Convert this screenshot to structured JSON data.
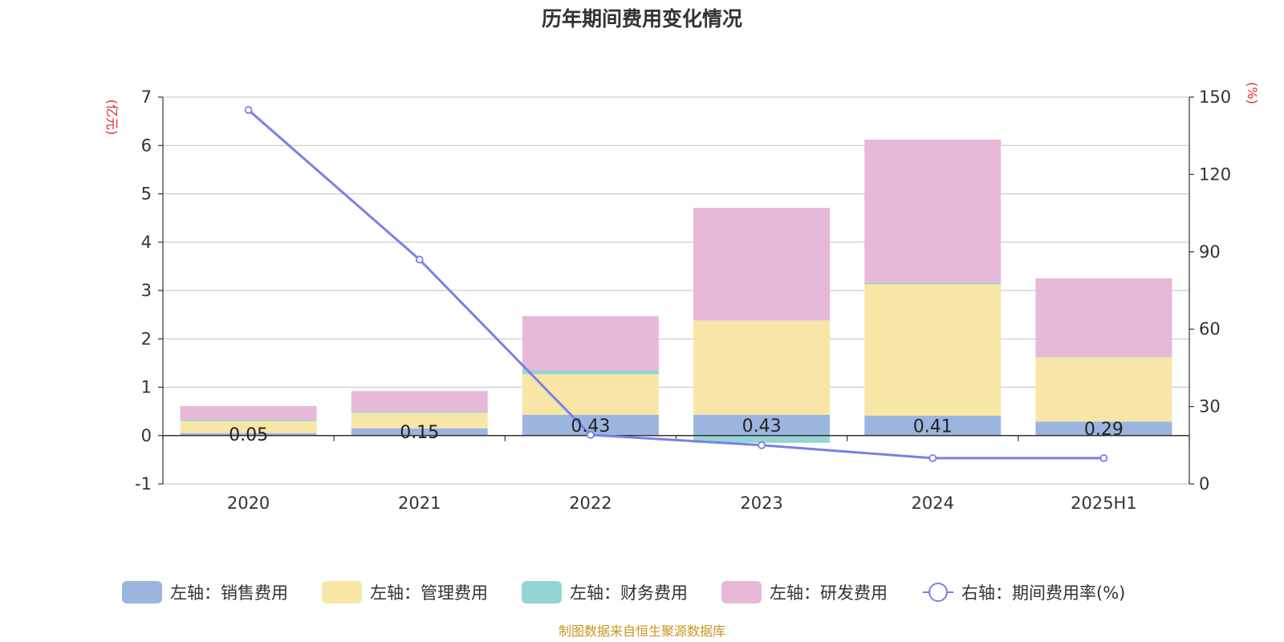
{
  "chart_data": {
    "type": "bar",
    "title": "历年期间费用变化情况",
    "categories": [
      "2020",
      "2021",
      "2022",
      "2023",
      "2024",
      "2025H1"
    ],
    "left_axis": {
      "unit": "(亿元)",
      "ylim": [
        -1,
        7
      ],
      "ticks": [
        "7",
        "6",
        "5",
        "4",
        "3",
        "2",
        "1",
        "0",
        "-1"
      ]
    },
    "right_axis": {
      "unit": "(%)",
      "ylim": [
        0,
        150
      ],
      "ticks": [
        "150",
        "120",
        "90",
        "60",
        "30",
        "0"
      ]
    },
    "series": [
      {
        "name": "左轴：销售费用",
        "kind": "bar",
        "axis": "left",
        "color": "#9bb5e0",
        "values": [
          0.05,
          0.15,
          0.43,
          0.43,
          0.41,
          0.29
        ],
        "labels": [
          "0.05",
          "0.15",
          "0.43",
          "0.43",
          "0.41",
          "0.29"
        ]
      },
      {
        "name": "左轴：管理费用",
        "kind": "bar",
        "axis": "left",
        "color": "#f7e6a6",
        "values": [
          0.25,
          0.32,
          0.84,
          1.95,
          2.72,
          1.33
        ]
      },
      {
        "name": "左轴：财务费用",
        "kind": "bar",
        "axis": "left",
        "color": "#95d4d5",
        "values": [
          0.03,
          0.03,
          0.08,
          -0.15,
          0.03,
          0.01
        ]
      },
      {
        "name": "左轴：研发费用",
        "kind": "bar",
        "axis": "left",
        "color": "#e8b8d8",
        "values": [
          0.28,
          0.42,
          1.12,
          2.33,
          2.96,
          1.62
        ]
      },
      {
        "name": "右轴：期间费用率(%)",
        "kind": "line",
        "axis": "right",
        "color": "#7b7fe8",
        "values": [
          145,
          87,
          19,
          15,
          10,
          10
        ]
      }
    ],
    "grid": true,
    "legend": "bottom"
  },
  "footer": {
    "source": "制图数据来自恒生聚源数据库"
  }
}
